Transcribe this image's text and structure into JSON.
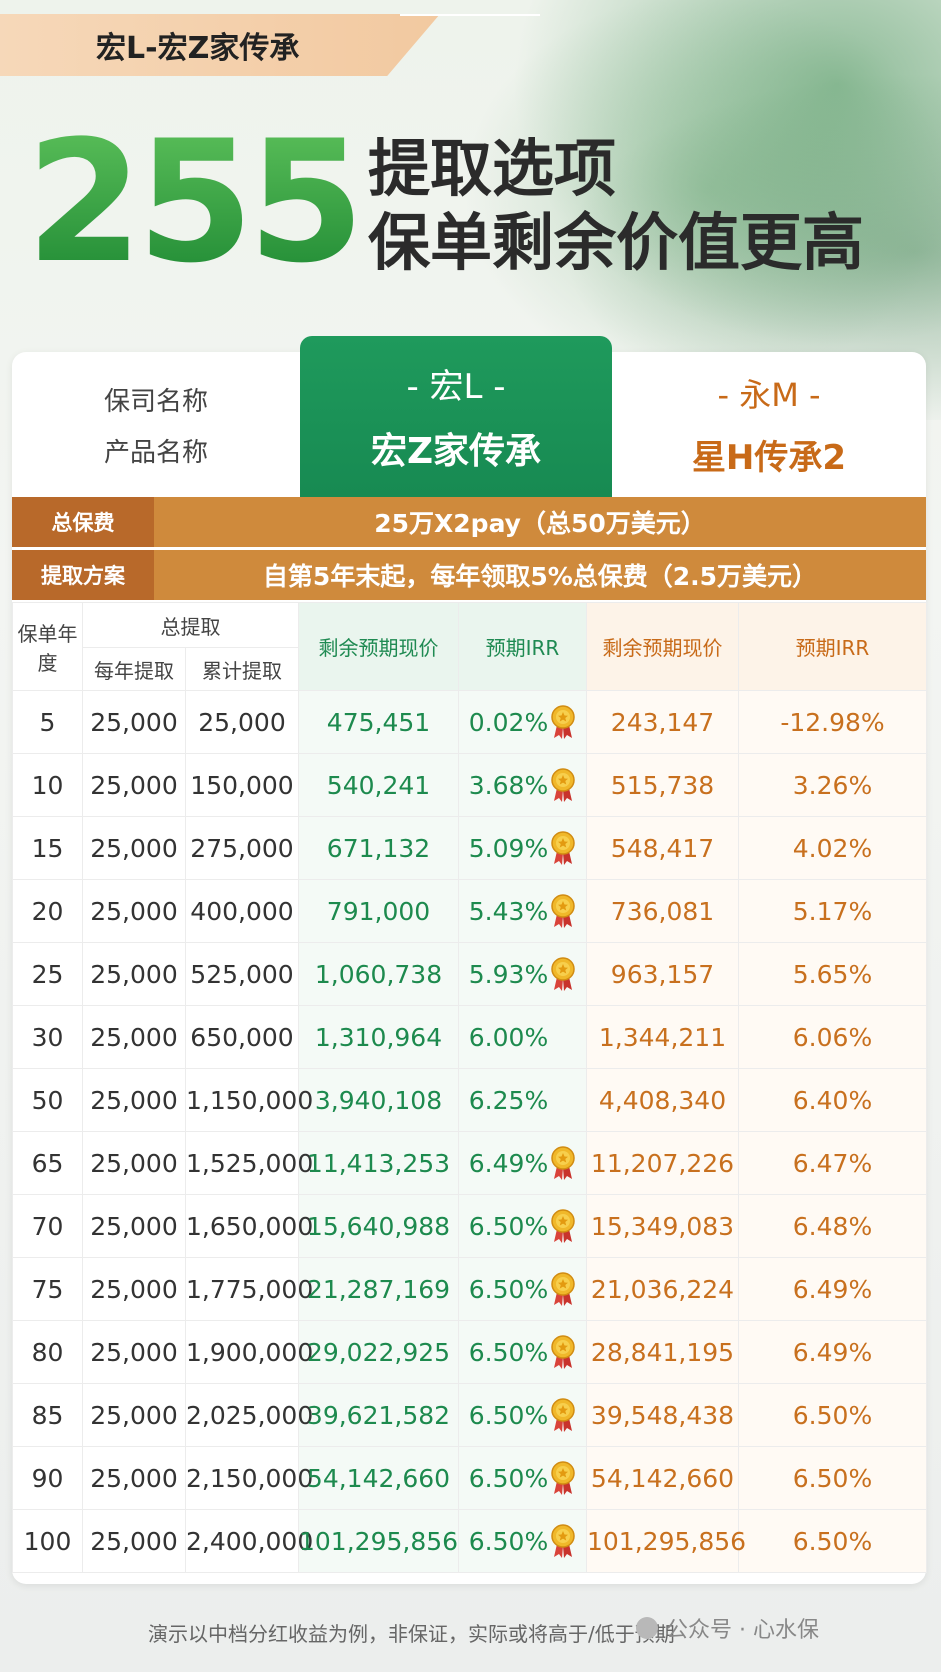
{
  "header": {
    "tag": "宏L-宏Z家传承",
    "big_number": "255",
    "headline_1": "提取选项",
    "headline_2": "保单剩余价值更高"
  },
  "columns": {
    "label_company": "保司名称",
    "label_product": "产品名称",
    "a_company": "- 宏L -",
    "a_product": "宏Z家传承",
    "b_company": "- 永M -",
    "b_product": "星H传承2"
  },
  "bars": {
    "premium_key": "总保费",
    "premium_value": "25万X2pay（总50万美元）",
    "plan_key": "提取方案",
    "plan_value": "自第5年末起，每年领取5%总保费（2.5万美元）"
  },
  "table_headers": {
    "year": "保单年度",
    "total_withdraw": "总提取",
    "annual": "每年提取",
    "cumulative": "累计提取",
    "a_value": "剩余预期现价",
    "a_irr": "预期IRR",
    "b_value": "剩余预期现价",
    "b_irr": "预期IRR"
  },
  "rows": [
    {
      "year": "5",
      "annual": "25,000",
      "cum": "25,000",
      "a_val": "475,451",
      "a_irr": "0.02%",
      "medal": true,
      "b_val": "243,147",
      "b_irr": "-12.98%"
    },
    {
      "year": "10",
      "annual": "25,000",
      "cum": "150,000",
      "a_val": "540,241",
      "a_irr": "3.68%",
      "medal": true,
      "b_val": "515,738",
      "b_irr": "3.26%"
    },
    {
      "year": "15",
      "annual": "25,000",
      "cum": "275,000",
      "a_val": "671,132",
      "a_irr": "5.09%",
      "medal": true,
      "b_val": "548,417",
      "b_irr": "4.02%"
    },
    {
      "year": "20",
      "annual": "25,000",
      "cum": "400,000",
      "a_val": "791,000",
      "a_irr": "5.43%",
      "medal": true,
      "b_val": "736,081",
      "b_irr": "5.17%"
    },
    {
      "year": "25",
      "annual": "25,000",
      "cum": "525,000",
      "a_val": "1,060,738",
      "a_irr": "5.93%",
      "medal": true,
      "b_val": "963,157",
      "b_irr": "5.65%"
    },
    {
      "year": "30",
      "annual": "25,000",
      "cum": "650,000",
      "a_val": "1,310,964",
      "a_irr": "6.00%",
      "medal": false,
      "b_val": "1,344,211",
      "b_irr": "6.06%"
    },
    {
      "year": "50",
      "annual": "25,000",
      "cum": "1,150,000",
      "a_val": "3,940,108",
      "a_irr": "6.25%",
      "medal": false,
      "b_val": "4,408,340",
      "b_irr": "6.40%"
    },
    {
      "year": "65",
      "annual": "25,000",
      "cum": "1,525,000",
      "a_val": "11,413,253",
      "a_irr": "6.49%",
      "medal": true,
      "b_val": "11,207,226",
      "b_irr": "6.47%"
    },
    {
      "year": "70",
      "annual": "25,000",
      "cum": "1,650,000",
      "a_val": "15,640,988",
      "a_irr": "6.50%",
      "medal": true,
      "b_val": "15,349,083",
      "b_irr": "6.48%"
    },
    {
      "year": "75",
      "annual": "25,000",
      "cum": "1,775,000",
      "a_val": "21,287,169",
      "a_irr": "6.50%",
      "medal": true,
      "b_val": "21,036,224",
      "b_irr": "6.49%"
    },
    {
      "year": "80",
      "annual": "25,000",
      "cum": "1,900,000",
      "a_val": "29,022,925",
      "a_irr": "6.50%",
      "medal": true,
      "b_val": "28,841,195",
      "b_irr": "6.49%"
    },
    {
      "year": "85",
      "annual": "25,000",
      "cum": "2,025,000",
      "a_val": "39,621,582",
      "a_irr": "6.50%",
      "medal": true,
      "b_val": "39,548,438",
      "b_irr": "6.50%"
    },
    {
      "year": "90",
      "annual": "25,000",
      "cum": "2,150,000",
      "a_val": "54,142,660",
      "a_irr": "6.50%",
      "medal": true,
      "b_val": "54,142,660",
      "b_irr": "6.50%"
    },
    {
      "year": "100",
      "annual": "25,000",
      "cum": "2,400,000",
      "a_val": "101,295,856",
      "a_irr": "6.50%",
      "medal": true,
      "b_val": "101,295,856",
      "b_irr": "6.50%"
    }
  ],
  "footer": {
    "note": "演示以中档分红收益为例，非保证，实际或将高于/低于预期",
    "watermark": "公众号 · 心水保"
  },
  "colors": {
    "green": "#1f9a5c",
    "orange": "#cf8a3c",
    "orange_text": "#c8701e"
  }
}
